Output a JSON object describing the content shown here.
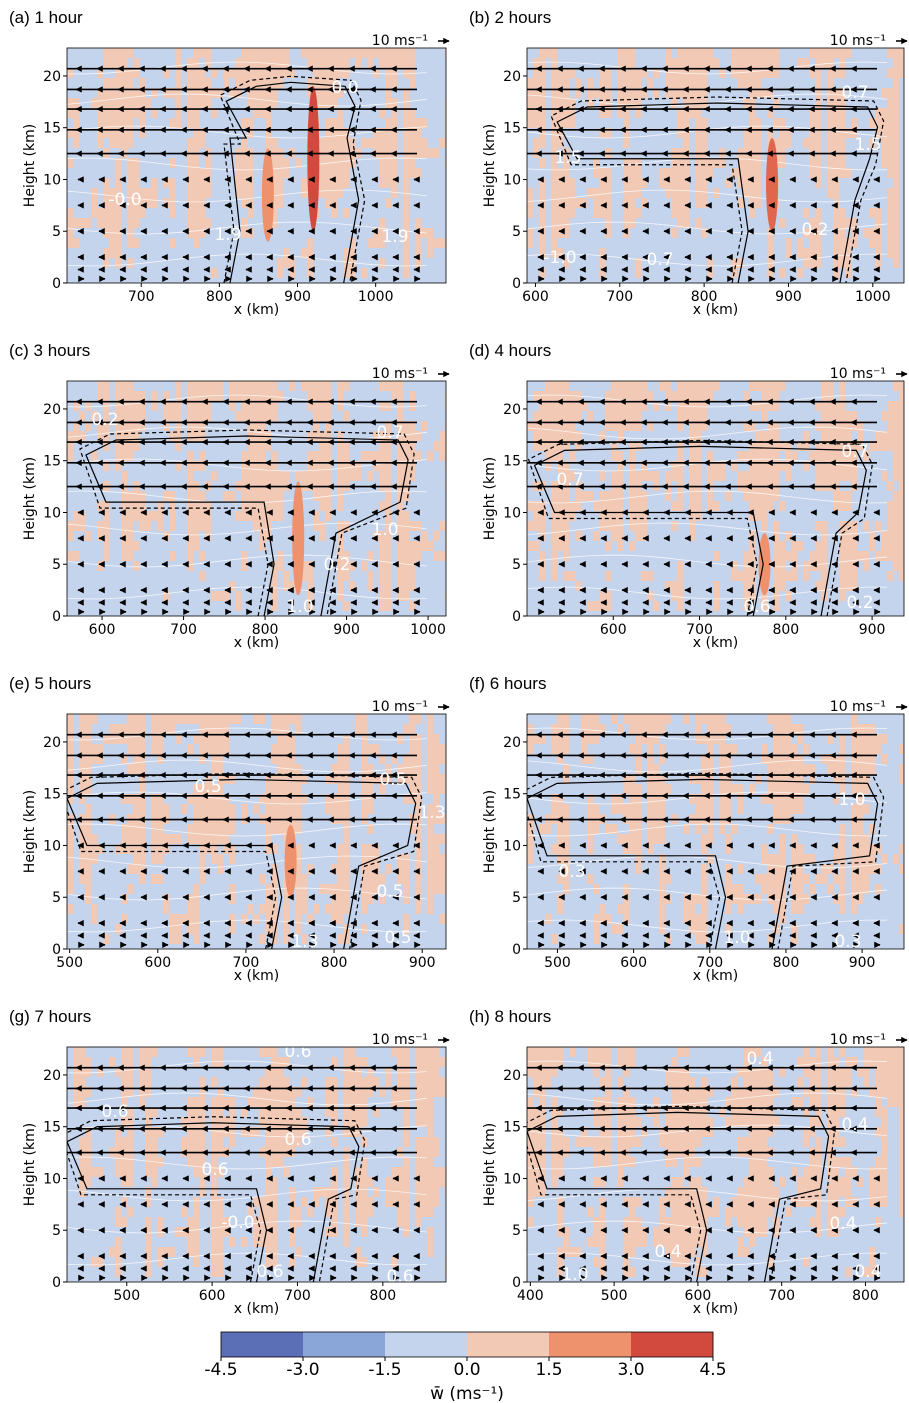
{
  "chart_data": [
    {
      "type": "contour",
      "title": "(a) 1 hour",
      "xlabel": "x (km)",
      "ylabel": "Height (km)",
      "xlim": [
        605,
        1090
      ],
      "xticks": [
        700,
        800,
        900,
        1000
      ],
      "ylim": [
        0,
        22.7
      ],
      "yticks": [
        0,
        5,
        10,
        15,
        20
      ],
      "reference_vector": "10 ms⁻¹",
      "contour_labels": [
        "0.0",
        "-0.0",
        "1.9",
        "1.9"
      ]
    },
    {
      "type": "contour",
      "title": "(b) 2 hours",
      "xlabel": "x (km)",
      "ylabel": "Height (km)",
      "xlim": [
        590,
        1037
      ],
      "xticks": [
        600,
        700,
        800,
        900,
        1000
      ],
      "ylim": [
        0,
        22.7
      ],
      "yticks": [
        0,
        5,
        10,
        15,
        20
      ],
      "reference_vector": "10 ms⁻¹",
      "contour_labels": [
        "0.7",
        "1.5",
        "1.5",
        "-1.0",
        "0.7",
        "0.2"
      ]
    },
    {
      "type": "contour",
      "title": "(c) 3 hours",
      "xlabel": "x (km)",
      "ylabel": "Height (km)",
      "xlim": [
        557,
        1022
      ],
      "xticks": [
        600,
        700,
        800,
        900,
        1000
      ],
      "ylim": [
        0,
        22.7
      ],
      "yticks": [
        0,
        5,
        10,
        15,
        20
      ],
      "reference_vector": "10 ms⁻¹",
      "contour_labels": [
        "0.2",
        "0.7",
        "1.0",
        "0.2",
        "1.0"
      ]
    },
    {
      "type": "contour",
      "title": "(d) 4 hours",
      "xlabel": "x (km)",
      "ylabel": "Height (km)",
      "xlim": [
        500,
        937
      ],
      "xticks": [
        600,
        700,
        800,
        900
      ],
      "ylim": [
        0,
        22.7
      ],
      "yticks": [
        0,
        5,
        10,
        15,
        20
      ],
      "reference_vector": "10 ms⁻¹",
      "contour_labels": [
        "0.7",
        "0.7",
        "0.6",
        "0.2"
      ]
    },
    {
      "type": "contour",
      "title": "(e) 5 hours",
      "xlabel": "x (km)",
      "ylabel": "Height (km)",
      "xlim": [
        497,
        927
      ],
      "xticks": [
        500,
        600,
        700,
        800,
        900
      ],
      "ylim": [
        0,
        22.7
      ],
      "yticks": [
        0,
        5,
        10,
        15,
        20
      ],
      "reference_vector": "10 ms⁻¹",
      "contour_labels": [
        "0.5",
        "0.5",
        "1.3",
        "0.5",
        "1.3",
        "0.5"
      ]
    },
    {
      "type": "contour",
      "title": "(f) 6 hours",
      "xlabel": "x (km)",
      "ylabel": "Height (km)",
      "xlim": [
        460,
        955
      ],
      "xticks": [
        500,
        600,
        700,
        800,
        900
      ],
      "ylim": [
        0,
        22.7
      ],
      "yticks": [
        0,
        5,
        10,
        15,
        20
      ],
      "reference_vector": "10 ms⁻¹",
      "contour_labels": [
        "1.0",
        "0.3",
        "1.0",
        "0.3"
      ]
    },
    {
      "type": "contour",
      "title": "(g) 7 hours",
      "xlabel": "x (km)",
      "ylabel": "Height (km)",
      "xlim": [
        430,
        874
      ],
      "xticks": [
        500,
        600,
        700,
        800
      ],
      "ylim": [
        0,
        22.7
      ],
      "yticks": [
        0,
        5,
        10,
        15,
        20
      ],
      "reference_vector": "10 ms⁻¹",
      "contour_labels": [
        "0.6",
        "0.6",
        "0.6",
        "0.6",
        "-0.0",
        "0.6",
        "0.6"
      ]
    },
    {
      "type": "contour",
      "title": "(h) 8 hours",
      "xlabel": "x (km)",
      "ylabel": "Height (km)",
      "xlim": [
        396,
        846
      ],
      "xticks": [
        400,
        500,
        600,
        700,
        800
      ],
      "ylim": [
        0,
        22.7
      ],
      "yticks": [
        0,
        5,
        10,
        15,
        20
      ],
      "reference_vector": "10 ms⁻¹",
      "contour_labels": [
        "0.4",
        "0.4",
        "0.4",
        "0.4",
        "1.0",
        "0.4"
      ]
    },
    {
      "type": "colorbar",
      "label": "w̄ (ms⁻¹)",
      "xlim": [
        -4.5,
        4.5
      ],
      "xticks": [
        -4.5,
        {
          "value": -3,
          "label": "-3.0"
        },
        -1.5,
        {
          "value": 0,
          "label": "0.0"
        },
        1.5,
        {
          "value": 3,
          "label": "3.0"
        },
        4.5
      ],
      "colors": [
        "#5a6fb6",
        "#8aa6d9",
        "#c4d4ed",
        "#f2c9b4",
        "#ee916d",
        "#d24a3d"
      ]
    }
  ]
}
